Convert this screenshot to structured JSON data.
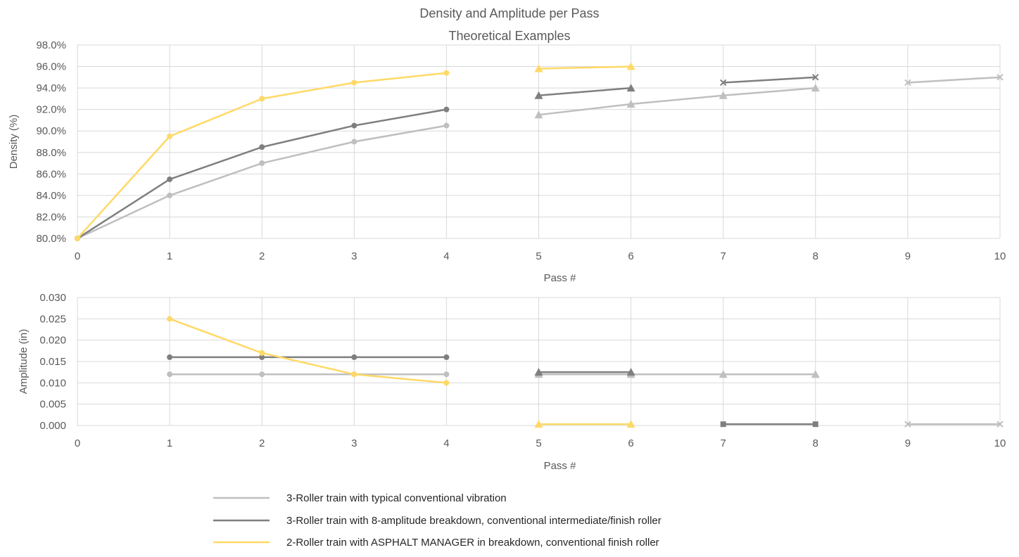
{
  "chart_data": {
    "type": "line",
    "title_lines": [
      "Density and Amplitude per Pass",
      "Theoretical Examples"
    ],
    "legend": {
      "placement": "bottom",
      "entries": [
        {
          "name": "3-Roller train with typical conventional vibration",
          "color": "#BFBFBF"
        },
        {
          "name": "3-Roller train with 8-amplitude breakdown, conventional intermediate/finish roller",
          "color": "#7F7F7F"
        },
        {
          "name": "2-Roller train with ASPHALT MANAGER in breakdown, conventional finish roller",
          "color": "#FFD966"
        }
      ]
    },
    "panels": [
      {
        "id": "density",
        "xlabel": "Pass #",
        "ylabel": "Density (%)",
        "xlim": [
          0,
          10
        ],
        "ylim": [
          80,
          98
        ],
        "ytick_step": 2,
        "ytick_format": "percent1",
        "grid": true,
        "series": [
          {
            "color": "#BFBFBF",
            "marker": "circle",
            "x": [
              0,
              1,
              2,
              3,
              4
            ],
            "y": [
              80.0,
              84.0,
              87.0,
              89.0,
              90.5
            ]
          },
          {
            "color": "#BFBFBF",
            "marker": "triangle",
            "x": [
              5,
              6,
              7,
              8
            ],
            "y": [
              91.5,
              92.5,
              93.3,
              94.0
            ]
          },
          {
            "color": "#BFBFBF",
            "marker": "x",
            "x": [
              9,
              10
            ],
            "y": [
              94.5,
              95.0
            ]
          },
          {
            "color": "#7F7F7F",
            "marker": "circle",
            "x": [
              0,
              1,
              2,
              3,
              4
            ],
            "y": [
              80.0,
              85.5,
              88.5,
              90.5,
              92.0
            ]
          },
          {
            "color": "#7F7F7F",
            "marker": "triangle",
            "x": [
              5,
              6
            ],
            "y": [
              93.3,
              94.0
            ]
          },
          {
            "color": "#7F7F7F",
            "marker": "x",
            "x": [
              7,
              8
            ],
            "y": [
              94.5,
              95.0
            ]
          },
          {
            "color": "#FFD966",
            "marker": "circle",
            "x": [
              0,
              1,
              2,
              3,
              4
            ],
            "y": [
              80.0,
              89.5,
              93.0,
              94.5,
              95.4
            ]
          },
          {
            "color": "#FFD966",
            "marker": "triangle",
            "x": [
              5,
              6
            ],
            "y": [
              95.8,
              96.0
            ]
          }
        ]
      },
      {
        "id": "amplitude",
        "xlabel": "Pass #",
        "ylabel": "Amplitude (in)",
        "xlim": [
          0,
          10
        ],
        "ylim": [
          0,
          0.03
        ],
        "ytick_step": 0.005,
        "ytick_format": "fixed3",
        "grid": true,
        "series": [
          {
            "color": "#BFBFBF",
            "marker": "circle",
            "x": [
              1,
              2,
              3,
              4
            ],
            "y": [
              0.012,
              0.012,
              0.012,
              0.012
            ]
          },
          {
            "color": "#BFBFBF",
            "marker": "triangle",
            "x": [
              5,
              6,
              7,
              8
            ],
            "y": [
              0.012,
              0.012,
              0.012,
              0.012
            ]
          },
          {
            "color": "#BFBFBF",
            "marker": "x",
            "x": [
              9,
              10
            ],
            "y": [
              0.0003,
              0.0003
            ]
          },
          {
            "color": "#7F7F7F",
            "marker": "circle",
            "x": [
              1,
              2,
              3,
              4
            ],
            "y": [
              0.016,
              0.016,
              0.016,
              0.016
            ]
          },
          {
            "color": "#7F7F7F",
            "marker": "triangle",
            "x": [
              5,
              6
            ],
            "y": [
              0.0125,
              0.0125
            ]
          },
          {
            "color": "#7F7F7F",
            "marker": "square",
            "x": [
              7,
              8
            ],
            "y": [
              0.0003,
              0.0003
            ]
          },
          {
            "color": "#FFD966",
            "marker": "circle",
            "x": [
              1,
              2,
              3,
              4
            ],
            "y": [
              0.025,
              0.017,
              0.012,
              0.01
            ]
          },
          {
            "color": "#FFD966",
            "marker": "triangle",
            "x": [
              5,
              6
            ],
            "y": [
              0.0003,
              0.0003
            ]
          }
        ]
      }
    ]
  }
}
